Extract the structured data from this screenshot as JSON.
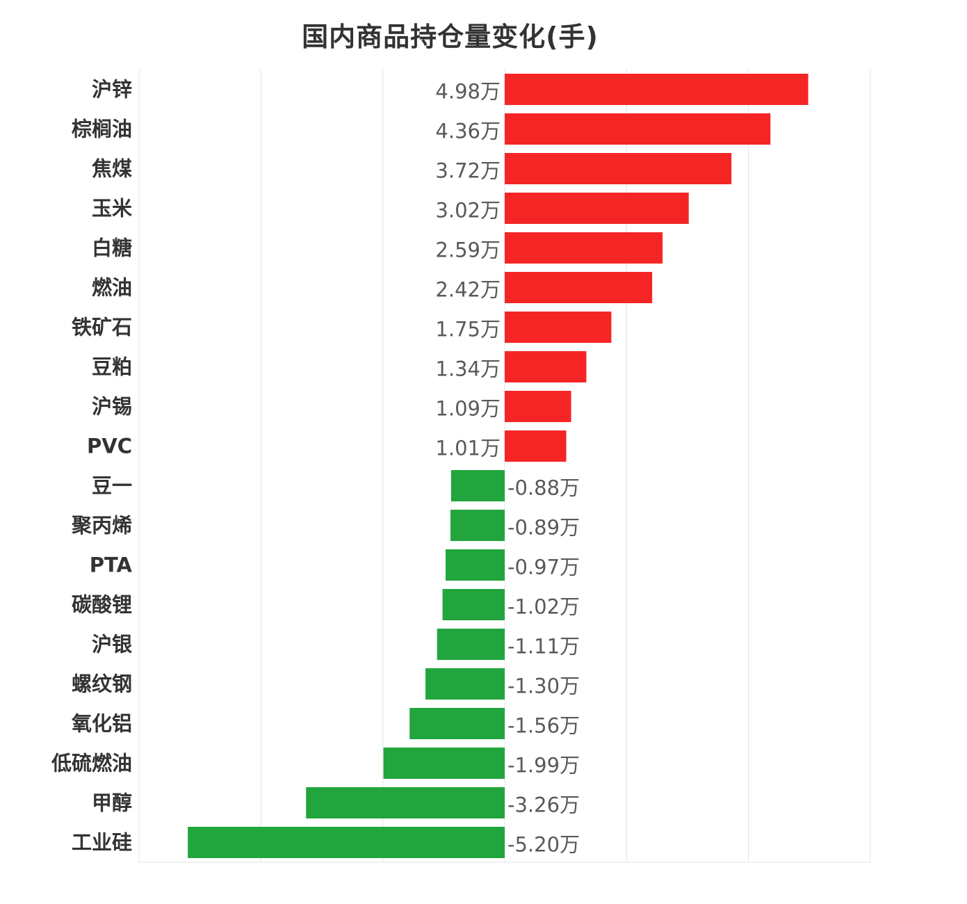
{
  "chart_data": {
    "type": "bar",
    "orientation": "horizontal",
    "title": "国内商品持仓量变化(手)",
    "categories": [
      "沪锌",
      "棕榈油",
      "焦煤",
      "玉米",
      "白糖",
      "燃油",
      "铁矿石",
      "豆粕",
      "沪锡",
      "PVC",
      "豆一",
      "聚丙烯",
      "PTA",
      "碳酸锂",
      "沪银",
      "螺纹钢",
      "氧化铝",
      "低硫燃油",
      "甲醇",
      "工业硅"
    ],
    "values": [
      4.98,
      4.36,
      3.72,
      3.02,
      2.59,
      2.42,
      1.75,
      1.34,
      1.09,
      1.01,
      -0.88,
      -0.89,
      -0.97,
      -1.02,
      -1.11,
      -1.3,
      -1.56,
      -1.99,
      -3.26,
      -5.2
    ],
    "value_labels": [
      "4.98万",
      "4.36万",
      "3.72万",
      "3.02万",
      "2.59万",
      "2.42万",
      "1.75万",
      "1.34万",
      "1.09万",
      "1.01万",
      "-0.88万",
      "-0.89万",
      "-0.97万",
      "-1.02万",
      "-1.11万",
      "-1.30万",
      "-1.56万",
      "-1.99万",
      "-3.26万",
      "-5.20万"
    ],
    "unit": "万",
    "xlim": [
      -6,
      6
    ],
    "grid": true,
    "legend": "none",
    "positive_color": "#f52526",
    "negative_color": "#21a53c"
  }
}
